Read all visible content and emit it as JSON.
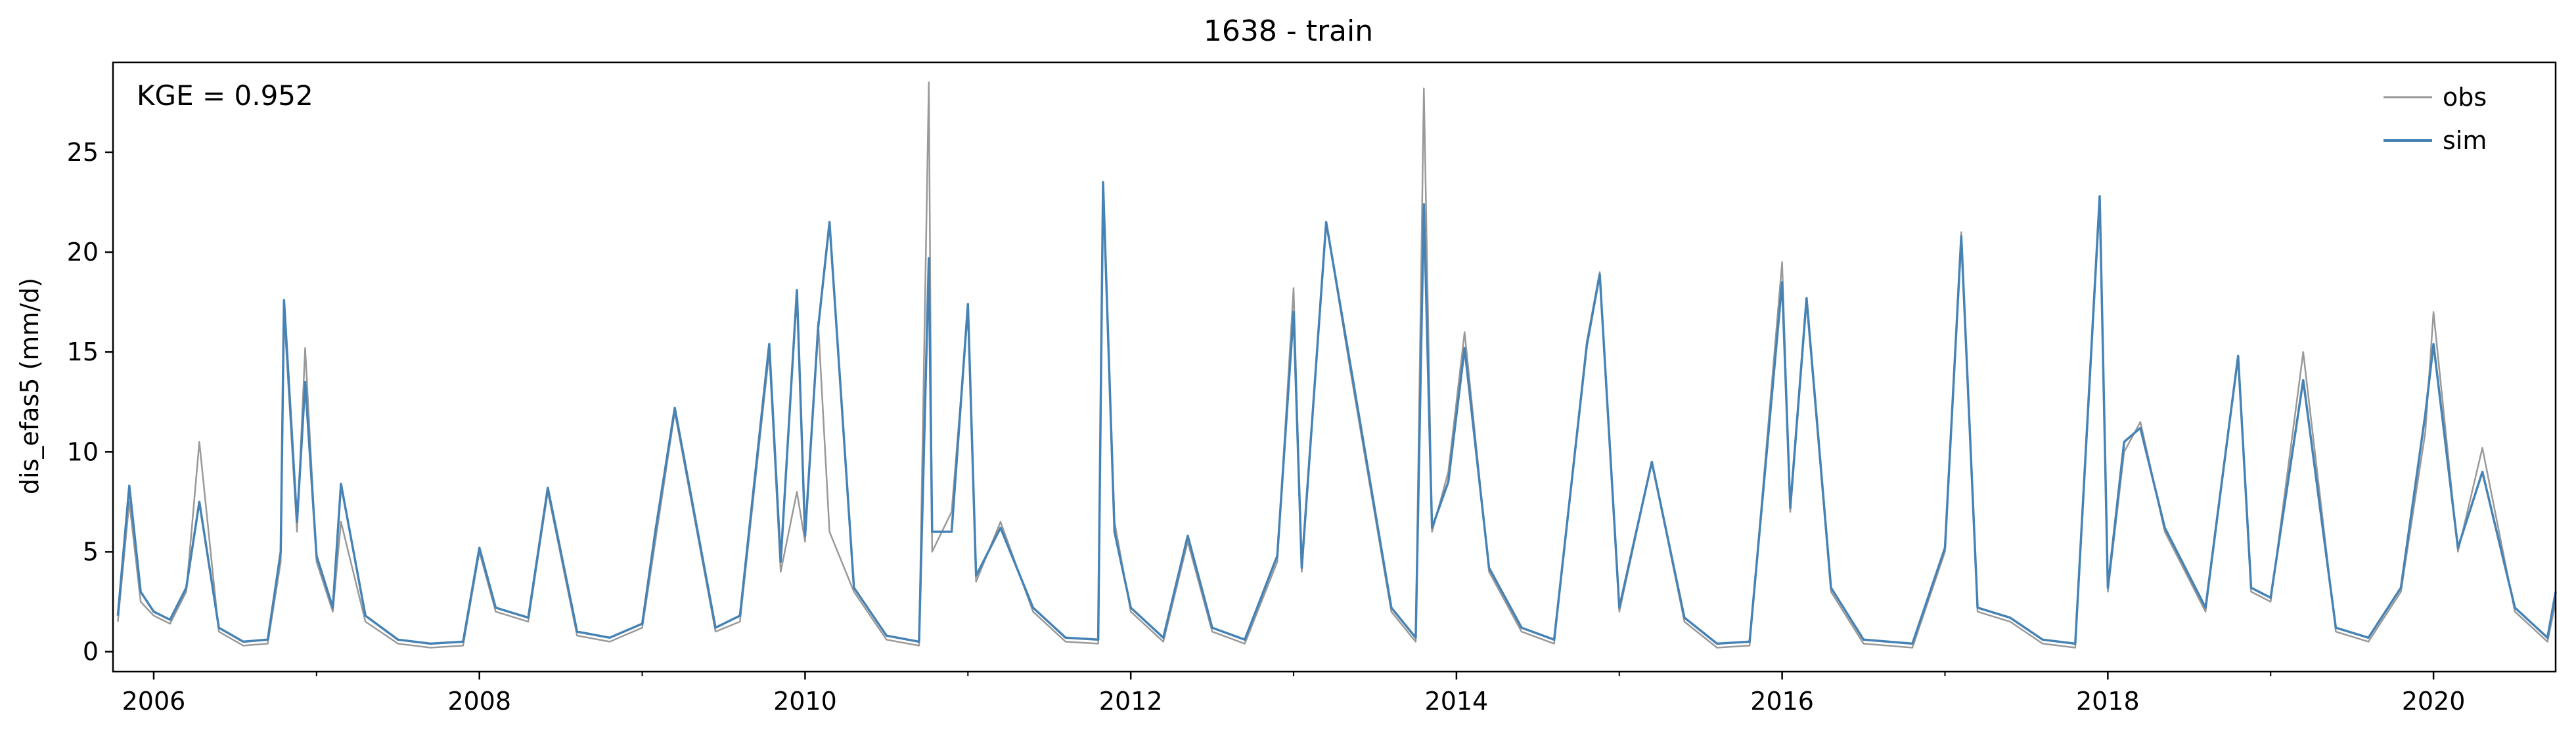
{
  "chart_data": {
    "type": "line",
    "title": "1638 - train",
    "xlabel": "",
    "ylabel": "dis_efas5 (mm/d)",
    "annotation": "KGE = 0.952",
    "xlim": [
      2005.75,
      2020.75
    ],
    "ylim": [
      -1.0,
      29.5
    ],
    "x_ticks": [
      2006,
      2008,
      2010,
      2012,
      2014,
      2016,
      2018,
      2020
    ],
    "x_tick_labels": [
      "2006",
      "2008",
      "2010",
      "2012",
      "2014",
      "2016",
      "2018",
      "2020"
    ],
    "y_ticks": [
      0,
      5,
      10,
      15,
      20,
      25
    ],
    "y_tick_labels": [
      "0",
      "5",
      "10",
      "15",
      "20",
      "25"
    ],
    "grid": false,
    "legend_position": "top-right",
    "series": [
      {
        "name": "obs",
        "color": "#999999",
        "x": [
          2005.78,
          2005.85,
          2005.92,
          2006.0,
          2006.1,
          2006.2,
          2006.28,
          2006.4,
          2006.55,
          2006.7,
          2006.78,
          2006.8,
          2006.88,
          2006.93,
          2007.0,
          2007.1,
          2007.15,
          2007.3,
          2007.5,
          2007.7,
          2007.9,
          2008.0,
          2008.1,
          2008.3,
          2008.42,
          2008.6,
          2008.8,
          2009.0,
          2009.08,
          2009.2,
          2009.45,
          2009.6,
          2009.78,
          2009.85,
          2009.95,
          2010.0,
          2010.08,
          2010.15,
          2010.3,
          2010.5,
          2010.7,
          2010.76,
          2010.78,
          2010.9,
          2011.0,
          2011.05,
          2011.2,
          2011.4,
          2011.6,
          2011.8,
          2011.83,
          2011.9,
          2012.0,
          2012.2,
          2012.35,
          2012.5,
          2012.7,
          2012.9,
          2013.0,
          2013.05,
          2013.2,
          2013.35,
          2013.6,
          2013.75,
          2013.8,
          2013.85,
          2013.95,
          2014.05,
          2014.2,
          2014.4,
          2014.6,
          2014.8,
          2014.88,
          2015.0,
          2015.2,
          2015.4,
          2015.6,
          2015.8,
          2016.0,
          2016.05,
          2016.15,
          2016.3,
          2016.5,
          2016.8,
          2017.0,
          2017.1,
          2017.2,
          2017.4,
          2017.6,
          2017.8,
          2017.95,
          2018.0,
          2018.1,
          2018.2,
          2018.35,
          2018.6,
          2018.8,
          2018.88,
          2019.0,
          2019.2,
          2019.4,
          2019.6,
          2019.8,
          2019.95,
          2020.0,
          2020.15,
          2020.3,
          2020.5,
          2020.7,
          2020.75
        ],
        "y": [
          1.5,
          7.5,
          2.5,
          1.8,
          1.4,
          3.0,
          10.5,
          1.0,
          0.3,
          0.4,
          4.5,
          17.0,
          6.0,
          15.2,
          4.5,
          2.0,
          6.5,
          1.5,
          0.4,
          0.2,
          0.3,
          5.0,
          2.0,
          1.5,
          8.0,
          0.8,
          0.5,
          1.2,
          5.5,
          12.0,
          1.0,
          1.5,
          15.0,
          4.0,
          8.0,
          5.5,
          16.5,
          6.0,
          3.0,
          0.6,
          0.3,
          28.5,
          5.0,
          7.0,
          17.0,
          3.5,
          6.5,
          2.0,
          0.5,
          0.4,
          23.5,
          6.5,
          2.0,
          0.5,
          5.5,
          1.0,
          0.4,
          4.5,
          18.2,
          4.0,
          21.5,
          14.0,
          2.0,
          0.5,
          28.2,
          6.0,
          9.0,
          16.0,
          4.0,
          1.0,
          0.4,
          15.5,
          19.0,
          2.0,
          9.5,
          1.5,
          0.2,
          0.3,
          19.5,
          7.0,
          17.5,
          3.0,
          0.4,
          0.2,
          5.0,
          21.0,
          2.0,
          1.5,
          0.4,
          0.2,
          22.5,
          3.0,
          10.0,
          11.5,
          6.0,
          2.0,
          14.8,
          3.0,
          2.5,
          15.0,
          1.0,
          0.5,
          3.0,
          11.0,
          17.0,
          5.0,
          10.2,
          2.0,
          0.5,
          2.5
        ]
      },
      {
        "name": "sim",
        "color": "#4682b4",
        "x": [
          2005.78,
          2005.85,
          2005.92,
          2006.0,
          2006.1,
          2006.2,
          2006.28,
          2006.4,
          2006.55,
          2006.7,
          2006.78,
          2006.8,
          2006.88,
          2006.93,
          2007.0,
          2007.1,
          2007.15,
          2007.3,
          2007.5,
          2007.7,
          2007.9,
          2008.0,
          2008.1,
          2008.3,
          2008.42,
          2008.6,
          2008.8,
          2009.0,
          2009.08,
          2009.2,
          2009.45,
          2009.6,
          2009.78,
          2009.85,
          2009.95,
          2010.0,
          2010.08,
          2010.15,
          2010.3,
          2010.5,
          2010.7,
          2010.76,
          2010.78,
          2010.9,
          2011.0,
          2011.05,
          2011.2,
          2011.4,
          2011.6,
          2011.8,
          2011.83,
          2011.9,
          2012.0,
          2012.2,
          2012.35,
          2012.5,
          2012.7,
          2012.9,
          2013.0,
          2013.05,
          2013.2,
          2013.35,
          2013.6,
          2013.75,
          2013.8,
          2013.85,
          2013.95,
          2014.05,
          2014.2,
          2014.4,
          2014.6,
          2014.8,
          2014.88,
          2015.0,
          2015.2,
          2015.4,
          2015.6,
          2015.8,
          2016.0,
          2016.05,
          2016.15,
          2016.3,
          2016.5,
          2016.8,
          2017.0,
          2017.1,
          2017.2,
          2017.4,
          2017.6,
          2017.8,
          2017.95,
          2018.0,
          2018.1,
          2018.2,
          2018.35,
          2018.6,
          2018.8,
          2018.88,
          2019.0,
          2019.2,
          2019.4,
          2019.6,
          2019.8,
          2019.95,
          2020.0,
          2020.15,
          2020.3,
          2020.5,
          2020.7,
          2020.75
        ],
        "y": [
          1.8,
          8.3,
          3.0,
          2.0,
          1.6,
          3.2,
          7.5,
          1.2,
          0.5,
          0.6,
          5.0,
          17.6,
          6.5,
          13.5,
          4.8,
          2.2,
          8.4,
          1.8,
          0.6,
          0.4,
          0.5,
          5.2,
          2.2,
          1.7,
          8.2,
          1.0,
          0.7,
          1.4,
          6.0,
          12.2,
          1.2,
          1.8,
          15.4,
          4.5,
          18.1,
          5.8,
          16.2,
          21.5,
          3.2,
          0.8,
          0.5,
          19.7,
          6.0,
          6.0,
          17.4,
          3.8,
          6.2,
          2.2,
          0.7,
          0.6,
          23.5,
          6.0,
          2.2,
          0.7,
          5.8,
          1.2,
          0.6,
          4.8,
          17.0,
          4.2,
          21.5,
          14.3,
          2.2,
          0.7,
          22.4,
          6.2,
          8.5,
          15.2,
          4.2,
          1.2,
          0.6,
          15.3,
          18.9,
          2.2,
          9.5,
          1.7,
          0.4,
          0.5,
          18.5,
          7.2,
          17.7,
          3.2,
          0.6,
          0.4,
          5.2,
          20.8,
          2.2,
          1.7,
          0.6,
          0.4,
          22.8,
          3.2,
          10.5,
          11.2,
          6.2,
          2.2,
          14.8,
          3.2,
          2.7,
          13.6,
          1.2,
          0.7,
          3.2,
          11.9,
          15.4,
          5.2,
          9.0,
          2.2,
          0.7,
          3.0
        ]
      }
    ]
  }
}
